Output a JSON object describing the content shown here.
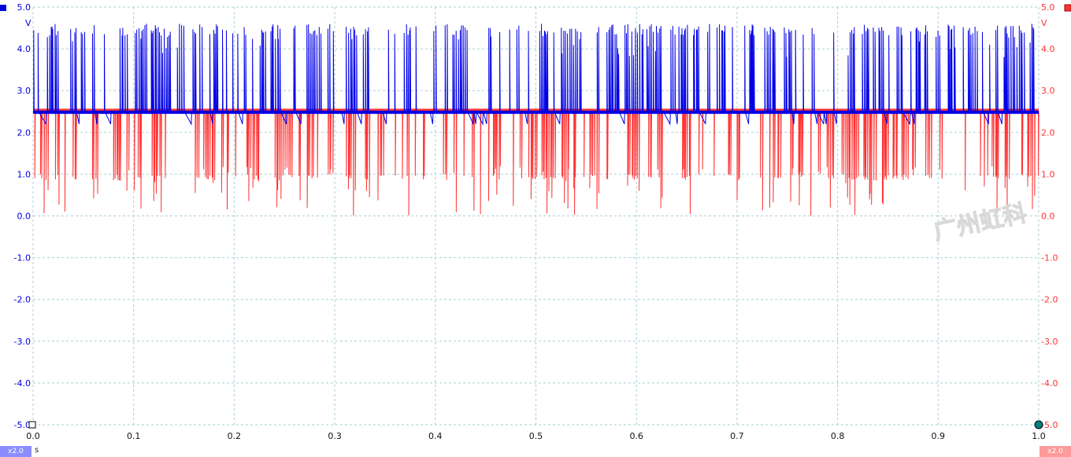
{
  "chart_data": {
    "type": "line",
    "title": "",
    "xlabel": "s",
    "xlim": [
      0.0,
      1.0
    ],
    "x_ticks": [
      "0.0",
      "0.1",
      "0.2",
      "0.3",
      "0.4",
      "0.5",
      "0.6",
      "0.7",
      "0.8",
      "0.9",
      "1.0"
    ],
    "grid": true,
    "y_left": {
      "unit": "V",
      "color": "#0000e0",
      "ylim": [
        -5.0,
        5.0
      ],
      "ticks": [
        "5.0",
        "4.0",
        "3.0",
        "2.0",
        "1.0",
        "0.0",
        "-1.0",
        "-2.0",
        "-3.0",
        "-4.0",
        "-5.0"
      ]
    },
    "y_right": {
      "unit": "V",
      "color": "#ff3333",
      "ylim": [
        -5.0,
        5.0
      ],
      "ticks": [
        "5.0",
        "4.0",
        "3.0",
        "2.0",
        "1.0",
        "0.0",
        "-1.0",
        "-2.0",
        "-3.0",
        "-4.0",
        "-5.0"
      ]
    },
    "series": [
      {
        "axis": "left",
        "color": "#0000e6",
        "baseline": 2.5,
        "pulse_range": [
          3.8,
          4.6
        ],
        "dip_level": 2.2,
        "note_pattern": "upward pulses from 2.5 V baseline"
      },
      {
        "axis": "right",
        "color": "#ff3333",
        "baseline": 2.5,
        "pulse_range": [
          0.0,
          1.0
        ],
        "note_pattern": "downward pulses from 2.5 V baseline"
      }
    ]
  },
  "badges": {
    "left": "x2.0",
    "right": "x2.0"
  },
  "watermark": "广州虹科"
}
